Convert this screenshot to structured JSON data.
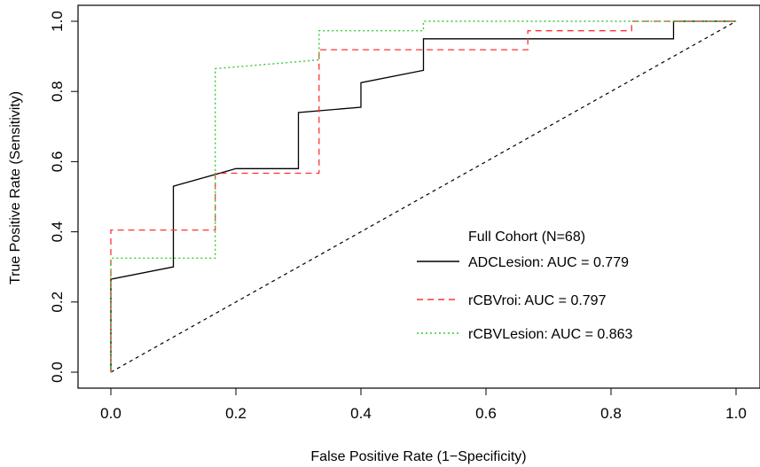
{
  "chart_data": {
    "type": "line",
    "xlabel": "False Positive Rate (1−Specificity)",
    "ylabel": "True Positive Rate (Sensitivity)",
    "xlim": [
      0.0,
      1.0
    ],
    "ylim": [
      0.0,
      1.0
    ],
    "xticks": [
      "0.0",
      "0.2",
      "0.4",
      "0.6",
      "0.8",
      "1.0"
    ],
    "yticks": [
      "0.0",
      "0.2",
      "0.4",
      "0.6",
      "0.8",
      "1.0"
    ],
    "grid": false,
    "legend": {
      "position": "bottom-right",
      "title": "Full Cohort (N=68)"
    },
    "reference_line": {
      "x": [
        0,
        1
      ],
      "y": [
        0,
        1
      ],
      "color": "#000000",
      "style": "dashed"
    },
    "series": [
      {
        "name": "ADCLesion: AUC = 0.779",
        "color": "#000000",
        "style": "solid",
        "x": [
          0,
          0,
          0.1,
          0.1,
          0.2,
          0.3,
          0.3,
          0.4,
          0.4,
          0.5,
          0.5,
          0.9,
          0.9,
          1.0
        ],
        "y": [
          0,
          0.265,
          0.3,
          0.53,
          0.58,
          0.58,
          0.74,
          0.755,
          0.825,
          0.86,
          0.95,
          0.95,
          1.0,
          1.0
        ]
      },
      {
        "name": "rCBVroi: AUC = 0.797",
        "color": "#ff3333",
        "style": "dashed",
        "x": [
          0,
          0,
          0.167,
          0.167,
          0.333,
          0.333,
          0.667,
          0.667,
          0.833,
          0.833,
          1.0
        ],
        "y": [
          0,
          0.405,
          0.405,
          0.567,
          0.567,
          0.919,
          0.919,
          0.973,
          0.973,
          1.0,
          1.0
        ]
      },
      {
        "name": "rCBVLesion: AUC = 0.863",
        "color": "#33cc33",
        "style": "dotted",
        "x": [
          0,
          0,
          0.167,
          0.167,
          0.333,
          0.333,
          0.5,
          0.5,
          1.0
        ],
        "y": [
          0,
          0.325,
          0.325,
          0.865,
          0.89,
          0.973,
          0.973,
          1.0,
          1.0
        ]
      }
    ]
  }
}
